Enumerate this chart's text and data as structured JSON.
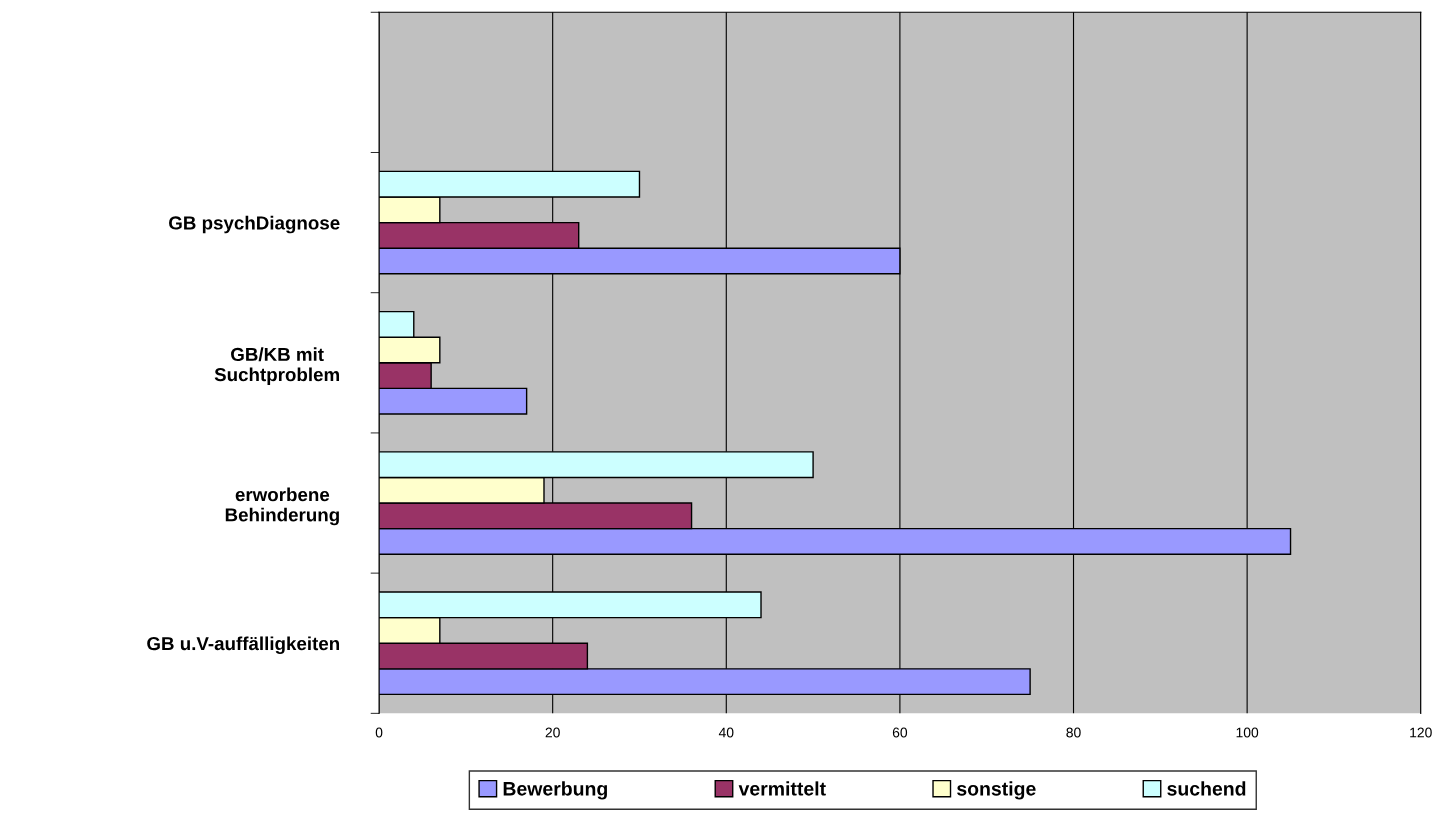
{
  "chart_data": {
    "type": "bar",
    "orientation": "horizontal",
    "categories": [
      null,
      "GB psychDiagnose",
      "GB/KB mit\nSuchtproblem",
      "erworbene\nBehinderung",
      "GB u.V-auffälligkeiten"
    ],
    "series": [
      {
        "name": "Bewerbung",
        "color": "#9999ff",
        "values": [
          null,
          60,
          17,
          105,
          75
        ]
      },
      {
        "name": "vermittelt",
        "color": "#993366",
        "values": [
          null,
          23,
          6,
          36,
          24
        ]
      },
      {
        "name": "sonstige",
        "color": "#ffffcc",
        "values": [
          null,
          7,
          7,
          19,
          7
        ]
      },
      {
        "name": "suchend",
        "color": "#ccffff",
        "values": [
          null,
          30,
          4,
          50,
          44
        ]
      }
    ],
    "xlim": [
      0,
      120
    ],
    "xticks": [
      0,
      20,
      40,
      60,
      80,
      100,
      120
    ],
    "grid": "x",
    "legend": "bottom"
  }
}
